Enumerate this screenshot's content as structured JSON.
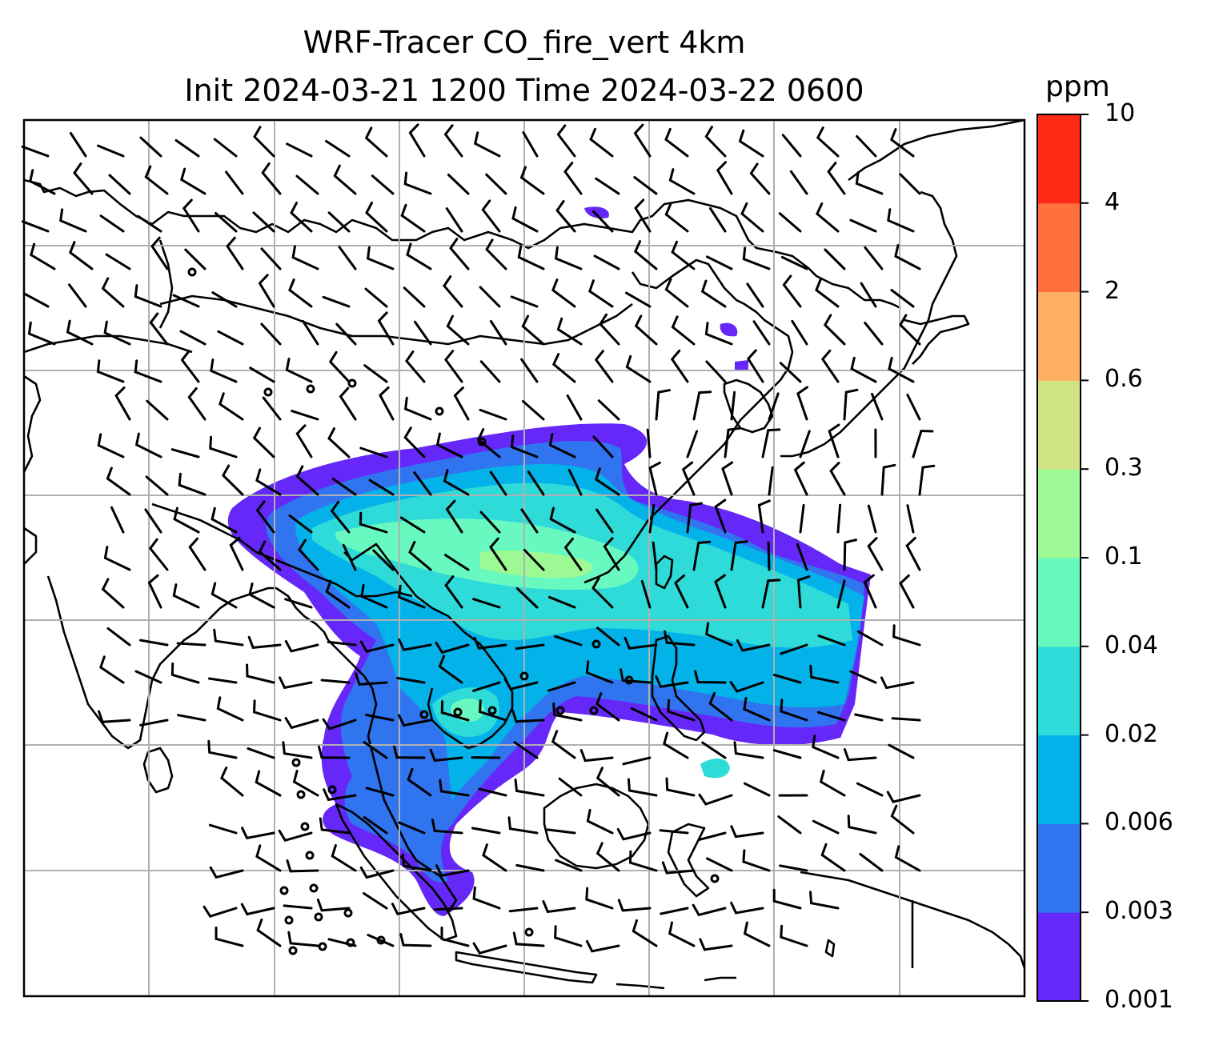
{
  "title_line1": "WRF-Tracer CO_fire_vert 4km",
  "title_line2": "Init 2024-03-21 1200 Time 2024-03-22 0600",
  "colorbar": {
    "unit": "ppm",
    "levels": [
      "0.001",
      "0.003",
      "0.006",
      "0.02",
      "0.04",
      "0.1",
      "0.3",
      "0.6",
      "2",
      "4",
      "10"
    ],
    "colors": [
      "#6528f8",
      "#3074f0",
      "#04b2ea",
      "#2edbd8",
      "#68f9c0",
      "#9df994",
      "#cfe384",
      "#ffaf62",
      "#ff703d",
      "#ff2a16"
    ]
  },
  "map": {
    "grid": "on",
    "land_outline_color": "#000000",
    "gridline_color": "#b0b0b0",
    "overlay": "wind barbs"
  }
}
